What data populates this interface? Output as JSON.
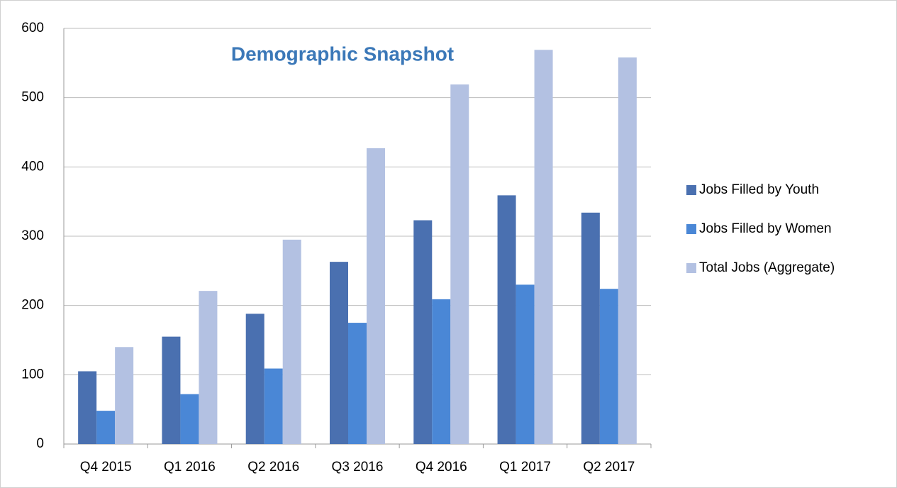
{
  "chart_data": {
    "type": "bar",
    "title": "Demographic Snapshot",
    "categories": [
      "Q4 2015",
      "Q1 2016",
      "Q2 2016",
      "Q3 2016",
      "Q4 2016",
      "Q1 2017",
      "Q2 2017"
    ],
    "series": [
      {
        "name": "Jobs Filled by Youth",
        "color": "#4a70b0",
        "values": [
          105,
          155,
          188,
          263,
          323,
          359,
          334
        ]
      },
      {
        "name": "Jobs Filled by Women",
        "color": "#4a87d6",
        "values": [
          48,
          72,
          109,
          175,
          209,
          230,
          224
        ]
      },
      {
        "name": "Total Jobs (Aggregate)",
        "color": "#b3c1e2",
        "values": [
          140,
          221,
          295,
          427,
          519,
          569,
          558
        ]
      }
    ],
    "ylim": [
      0,
      600
    ],
    "yticks": [
      0,
      100,
      200,
      300,
      400,
      500,
      600
    ],
    "grid": true,
    "legend": "right"
  }
}
